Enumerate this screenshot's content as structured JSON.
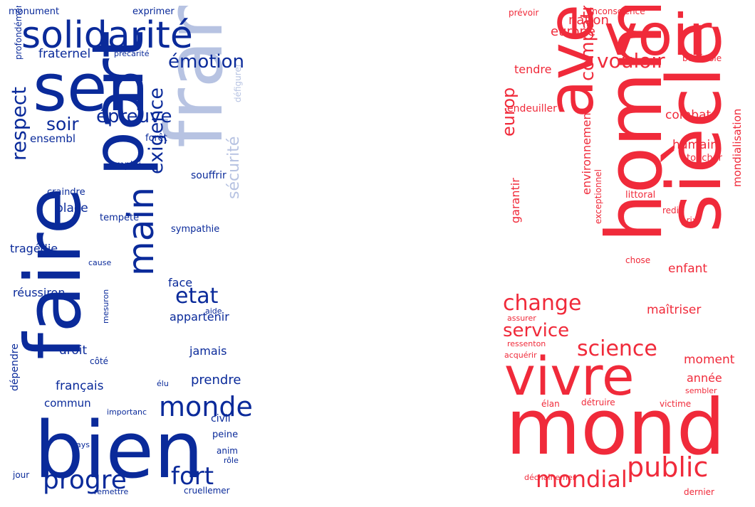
{
  "colors": {
    "blue_dark": "#0a2a9a",
    "blue_light": "#b7c3e2",
    "red": "#f02a3a"
  },
  "clouds": [
    {
      "id": "left",
      "color": "#0a2a9a",
      "words": [
        "faire",
        "bien",
        "sen",
        "part",
        "france",
        "solidarité",
        "main",
        "monde",
        "progrè",
        "fort",
        "respect",
        "exigence",
        "émotion",
        "épreuve",
        "soir",
        "etat",
        "sécurité",
        "fraternel",
        "tragédie",
        "réussiron",
        "appartenir",
        "face",
        "jamais",
        "prendre",
        "français",
        "droit",
        "place",
        "commun",
        "civil",
        "ensembl",
        "souffrir",
        "monument",
        "exprimer",
        "précarité",
        "profondément",
        "défigurer",
        "forêt",
        "emploi",
        "craindre",
        "tempête",
        "sympathie",
        "cause",
        "aide",
        "mesuron",
        "côté",
        "élu",
        "dépendre",
        "importanc",
        "peine",
        "pays",
        "anim",
        "rôle",
        "jour",
        "remettre",
        "cruellemer"
      ]
    },
    {
      "id": "right",
      "color": "#f02a3a",
      "words": [
        "mond",
        "homme",
        "siècle",
        "avenir",
        "voir",
        "vivre",
        "public",
        "mondial",
        "science",
        "change",
        "service",
        "compatriote",
        "vouloir",
        "europ",
        "europe",
        "nation",
        "combat",
        "humain",
        "enfant",
        "maîtriser",
        "environnement",
        "exceptionnel",
        "garantir",
        "mondialisation",
        "moment",
        "année",
        "tendre",
        "endeuiller",
        "prévoir",
        "inconscience",
        "bénévole",
        "toucher",
        "littoral",
        "redi",
        "prix",
        "chose",
        "assurer",
        "ressenton",
        "acquérir",
        "élan",
        "détruire",
        "victime",
        "sembler",
        "déchaînemer",
        "dernier"
      ]
    }
  ]
}
